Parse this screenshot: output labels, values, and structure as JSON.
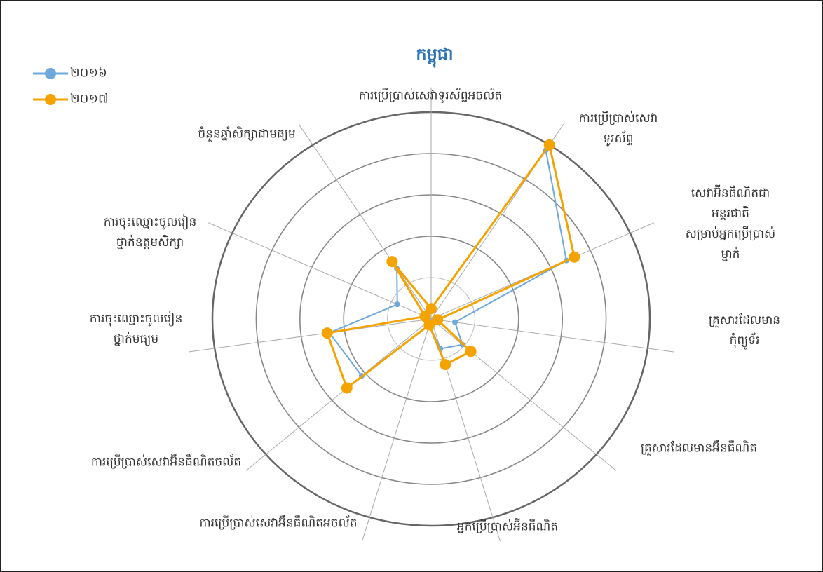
{
  "chart_data": {
    "type": "radar",
    "title": "កម្ពុជា",
    "categories": [
      "ការប្រើប្រាស់សេវាទូរស័ព្ទអចល័ត",
      "ការប្រើប្រាស់សេវា\nទូរស័ព្ទ",
      "សេវាអ៊ីនធឺណិតជាអន្តរជាតិ\nសម្រាប់អ្នកប្រើប្រាស់ម្នាក់",
      "គ្រួសារដែលមានកុំព្យូទ័រ",
      "គ្រួសារដែលមានអ៊ីនធឺណិត",
      "អ្នកប្រើប្រាស់អ៊ីនធឺណិត",
      "ការប្រើប្រាស់សេវាអ៊ីនធឺណិតអចល័ត",
      "ការប្រើប្រាស់សេវាអ៊ីនធឺណិតចល័ត",
      "ការចុះឈ្មោះចូលរៀន\nថ្នាក់មធ្យម",
      "ការចុះឈ្មោះចូលរៀន\nថ្នាក់ឧត្តមសិក្សា",
      "ចំនួនឆ្នាំសិក្សាជាមធ្យម"
    ],
    "series": [
      {
        "name": "២០១៦",
        "color": "#6fa8dc",
        "values": [
          5,
          97,
          68,
          11,
          19,
          15,
          3,
          42,
          47,
          17,
          29
        ]
      },
      {
        "name": "២០១៧",
        "color": "#f5a300",
        "values": [
          5,
          100,
          72,
          3,
          24,
          23,
          3,
          51,
          48,
          3,
          33
        ]
      }
    ],
    "rlim": [
      0,
      100
    ],
    "rticks": [
      20,
      40,
      60,
      80,
      100
    ],
    "legend": "top-left"
  }
}
